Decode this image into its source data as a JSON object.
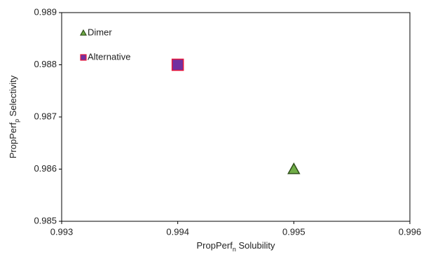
{
  "chart_data": {
    "type": "scatter",
    "xlabel": [
      "PropPerf",
      "n",
      " Solubility"
    ],
    "ylabel": [
      "PropPerf",
      "p",
      " Selectivity"
    ],
    "xlim": [
      0.993,
      0.996
    ],
    "xticks": [
      0.993,
      0.994,
      0.995,
      0.996
    ],
    "ylim": [
      0.985,
      0.989
    ],
    "yticks": [
      0.985,
      0.986,
      0.987,
      0.988,
      0.989
    ],
    "legend": "upper left",
    "series": [
      {
        "name": "Dimer",
        "marker": "triangle",
        "color": "#70ad47",
        "edgecolor": "#2f4f1a",
        "x": [
          0.995
        ],
        "values": [
          0.986
        ]
      },
      {
        "name": "Alternative",
        "marker": "square",
        "color": "#7030a0",
        "edgecolor": "#e8173b",
        "x": [
          0.994
        ],
        "values": [
          0.988
        ]
      }
    ]
  }
}
